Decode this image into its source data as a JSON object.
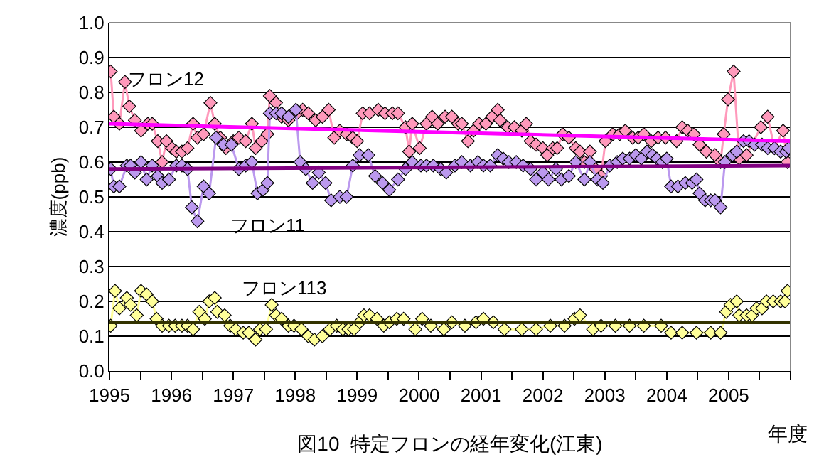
{
  "chart_data": {
    "type": "line",
    "title": "図10  特定フロンの経年変化(江東)",
    "xlabel": "年度",
    "ylabel": "濃度(ppb)",
    "xlim": [
      1995,
      2006
    ],
    "ylim": [
      0,
      1.0
    ],
    "xticks": [
      1995,
      {
        "value": 1995.5,
        "label": null
      },
      1996,
      {
        "value": 1996.5,
        "label": null
      },
      1997,
      {
        "value": 1997.5,
        "label": null
      },
      1998,
      {
        "value": 1998.5,
        "label": null
      },
      1999,
      {
        "value": 1999.5,
        "label": null
      },
      2000,
      {
        "value": 2000.5,
        "label": null
      },
      2001,
      {
        "value": 2001.5,
        "label": null
      },
      2002,
      {
        "value": 2002.5,
        "label": null
      },
      2003,
      {
        "value": 2003.5,
        "label": null
      },
      2004,
      {
        "value": 2004.5,
        "label": null
      },
      2005,
      {
        "value": 2005.5,
        "label": null
      },
      {
        "value": 2006,
        "label": null
      }
    ],
    "yticks": [
      {
        "value": 0,
        "label": "0.0"
      },
      0.1,
      0.2,
      0.3,
      0.4,
      0.5,
      0.6,
      0.7,
      0.8,
      0.9,
      {
        "value": 1.0,
        "label": "1.0"
      }
    ],
    "grid": "y",
    "legend": false,
    "marker": "diamond",
    "line_style": "solid",
    "series": [
      {
        "name": "フロン12",
        "color": "#ff99bb",
        "x": [
          1995.02,
          1995.07,
          1995.16,
          1995.25,
          1995.32,
          1995.41,
          1995.51,
          1995.62,
          1995.69,
          1995.78,
          1995.85,
          1995.92,
          1996.01,
          1996.08,
          1996.17,
          1996.26,
          1996.35,
          1996.42,
          1996.52,
          1996.63,
          1996.7,
          1996.79,
          1996.88,
          1997.0,
          1997.09,
          1997.2,
          1997.3,
          1997.36,
          1997.46,
          1997.55,
          1997.59,
          1997.69,
          1997.78,
          1997.89,
          1998.03,
          1998.12,
          1998.21,
          1998.33,
          1998.44,
          1998.54,
          1998.63,
          1998.72,
          1998.83,
          1998.93,
          1999.0,
          1999.09,
          1999.2,
          1999.34,
          1999.45,
          1999.57,
          1999.66,
          1999.78,
          1999.84,
          1999.89,
          2000.01,
          2000.12,
          2000.21,
          2000.3,
          2000.42,
          2000.53,
          2000.63,
          2000.69,
          2000.79,
          2000.88,
          2000.97,
          2001.08,
          2001.18,
          2001.27,
          2001.31,
          2001.43,
          2001.54,
          2001.66,
          2001.73,
          2001.8,
          2001.89,
          2002.0,
          2002.07,
          2002.16,
          2002.23,
          2002.32,
          2002.42,
          2002.53,
          2002.6,
          2002.67,
          2002.76,
          2002.85,
          2002.94,
          2003.01,
          2003.13,
          2003.24,
          2003.33,
          2003.45,
          2003.54,
          2003.63,
          2003.75,
          2003.86,
          2003.98,
          2004.16,
          2004.25,
          2004.34,
          2004.44,
          2004.53,
          2004.64,
          2004.78,
          2004.87,
          2004.92,
          2004.99,
          2005.08,
          2005.17,
          2005.29,
          2005.52,
          2005.63,
          2005.74,
          2005.88,
          2005.95
        ],
        "values": [
          0.86,
          0.73,
          0.71,
          0.83,
          0.76,
          0.72,
          0.69,
          0.71,
          0.71,
          0.66,
          0.6,
          0.66,
          0.64,
          0.63,
          0.63,
          0.64,
          0.71,
          0.67,
          0.68,
          0.77,
          0.71,
          0.67,
          0.64,
          0.66,
          0.67,
          0.66,
          0.71,
          0.64,
          0.66,
          0.68,
          0.79,
          0.77,
          0.73,
          0.72,
          0.74,
          0.75,
          0.74,
          0.72,
          0.73,
          0.75,
          0.67,
          0.69,
          0.68,
          0.67,
          0.66,
          0.74,
          0.74,
          0.75,
          0.74,
          0.74,
          0.74,
          0.7,
          0.63,
          0.71,
          0.64,
          0.71,
          0.73,
          0.71,
          0.73,
          0.73,
          0.71,
          0.71,
          0.66,
          0.69,
          0.71,
          0.71,
          0.73,
          0.75,
          0.72,
          0.7,
          0.7,
          0.69,
          0.71,
          0.66,
          0.65,
          0.64,
          0.62,
          0.64,
          0.64,
          0.68,
          0.67,
          0.64,
          0.63,
          0.6,
          0.63,
          0.58,
          0.56,
          0.66,
          0.68,
          0.68,
          0.69,
          0.67,
          0.67,
          0.68,
          0.66,
          0.67,
          0.67,
          0.66,
          0.7,
          0.69,
          0.68,
          0.65,
          0.63,
          0.62,
          0.6,
          0.68,
          0.78,
          0.86,
          0.61,
          0.62,
          0.7,
          0.73,
          0.64,
          0.69,
          0.6
        ]
      },
      {
        "name": "フロン11",
        "color": "#bb99ee",
        "x": [
          1995.02,
          1995.07,
          1995.16,
          1995.28,
          1995.34,
          1995.41,
          1995.51,
          1995.6,
          1995.69,
          1995.78,
          1995.85,
          1995.96,
          1996.08,
          1996.17,
          1996.26,
          1996.33,
          1996.42,
          1996.52,
          1996.61,
          1996.72,
          1996.84,
          1996.97,
          1997.09,
          1997.2,
          1997.3,
          1997.39,
          1997.48,
          1997.55,
          1997.59,
          1997.69,
          1997.78,
          1997.89,
          1998.01,
          1998.08,
          1998.17,
          1998.28,
          1998.38,
          1998.49,
          1998.58,
          1998.72,
          1998.83,
          1998.93,
          1999.04,
          1999.18,
          1999.29,
          1999.41,
          1999.52,
          1999.66,
          1999.78,
          1999.89,
          2000.03,
          2000.12,
          2000.23,
          2000.35,
          2000.44,
          2000.58,
          2000.69,
          2000.83,
          2000.95,
          2001.04,
          2001.15,
          2001.27,
          2001.36,
          2001.45,
          2001.57,
          2001.68,
          2001.8,
          2001.89,
          2002.0,
          2002.09,
          2002.21,
          2002.3,
          2002.42,
          2002.53,
          2002.67,
          2002.76,
          2002.88,
          2002.97,
          2003.08,
          2003.2,
          2003.29,
          2003.4,
          2003.5,
          2003.59,
          2003.68,
          2003.77,
          2003.84,
          2003.93,
          2004.0,
          2004.07,
          2004.18,
          2004.3,
          2004.41,
          2004.48,
          2004.53,
          2004.62,
          2004.71,
          2004.78,
          2004.87,
          2004.94,
          2005.06,
          2005.13,
          2005.24,
          2005.33,
          2005.42,
          2005.54,
          2005.63,
          2005.74,
          2005.84,
          2005.93,
          2005.97
        ],
        "values": [
          0.58,
          0.53,
          0.53,
          0.59,
          0.59,
          0.57,
          0.6,
          0.55,
          0.59,
          0.56,
          0.54,
          0.55,
          0.59,
          0.59,
          0.58,
          0.47,
          0.43,
          0.53,
          0.51,
          0.67,
          0.65,
          0.65,
          0.58,
          0.59,
          0.6,
          0.51,
          0.52,
          0.54,
          0.74,
          0.74,
          0.74,
          0.73,
          0.75,
          0.6,
          0.58,
          0.54,
          0.57,
          0.54,
          0.49,
          0.5,
          0.5,
          0.59,
          0.62,
          0.62,
          0.56,
          0.54,
          0.52,
          0.55,
          0.58,
          0.6,
          0.59,
          0.59,
          0.59,
          0.58,
          0.57,
          0.59,
          0.6,
          0.59,
          0.6,
          0.59,
          0.59,
          0.62,
          0.61,
          0.6,
          0.6,
          0.59,
          0.58,
          0.55,
          0.57,
          0.55,
          0.58,
          0.55,
          0.56,
          0.6,
          0.55,
          0.6,
          0.55,
          0.54,
          0.59,
          0.6,
          0.61,
          0.61,
          0.62,
          0.61,
          0.63,
          0.62,
          0.61,
          0.6,
          0.61,
          0.53,
          0.53,
          0.54,
          0.54,
          0.55,
          0.51,
          0.49,
          0.49,
          0.49,
          0.47,
          0.6,
          0.62,
          0.63,
          0.66,
          0.66,
          0.65,
          0.65,
          0.64,
          0.64,
          0.63,
          0.63,
          0.64
        ]
      },
      {
        "name": "フロン113",
        "color": "#ffff99",
        "x": [
          1995.02,
          1995.09,
          1995.16,
          1995.28,
          1995.34,
          1995.44,
          1995.51,
          1995.6,
          1995.69,
          1995.76,
          1995.85,
          1995.96,
          1996.06,
          1996.17,
          1996.26,
          1996.35,
          1996.45,
          1996.54,
          1996.61,
          1996.7,
          1996.74,
          1996.86,
          1996.95,
          1997.04,
          1997.16,
          1997.25,
          1997.36,
          1997.43,
          1997.53,
          1997.62,
          1997.69,
          1997.78,
          1997.89,
          1997.98,
          1998.1,
          1998.21,
          1998.31,
          1998.44,
          1998.56,
          1998.67,
          1998.77,
          1998.86,
          1998.95,
          1999.04,
          1999.11,
          1999.2,
          1999.32,
          1999.43,
          1999.52,
          1999.64,
          1999.75,
          1999.94,
          2000.05,
          2000.19,
          2000.4,
          2000.53,
          2000.74,
          2000.92,
          2001.04,
          2001.2,
          2001.38,
          2001.66,
          2001.89,
          2002.12,
          2002.35,
          2002.51,
          2002.6,
          2002.81,
          2002.94,
          2003.17,
          2003.4,
          2003.63,
          2003.91,
          2004.07,
          2004.25,
          2004.48,
          2004.71,
          2004.87,
          2004.96,
          2005.03,
          2005.13,
          2005.17,
          2005.29,
          2005.38,
          2005.45,
          2005.54,
          2005.61,
          2005.72,
          2005.84,
          2005.91,
          2005.95
        ],
        "values": [
          0.13,
          0.23,
          0.18,
          0.21,
          0.19,
          0.16,
          0.23,
          0.22,
          0.2,
          0.15,
          0.13,
          0.13,
          0.13,
          0.13,
          0.13,
          0.12,
          0.17,
          0.15,
          0.2,
          0.21,
          0.17,
          0.16,
          0.13,
          0.12,
          0.11,
          0.11,
          0.09,
          0.12,
          0.12,
          0.19,
          0.16,
          0.15,
          0.13,
          0.13,
          0.12,
          0.1,
          0.09,
          0.1,
          0.12,
          0.13,
          0.12,
          0.12,
          0.12,
          0.14,
          0.16,
          0.16,
          0.15,
          0.13,
          0.14,
          0.15,
          0.15,
          0.12,
          0.15,
          0.13,
          0.12,
          0.14,
          0.13,
          0.14,
          0.15,
          0.14,
          0.12,
          0.12,
          0.12,
          0.13,
          0.13,
          0.15,
          0.16,
          0.12,
          0.13,
          0.13,
          0.13,
          0.13,
          0.13,
          0.11,
          0.11,
          0.11,
          0.11,
          0.11,
          0.17,
          0.19,
          0.2,
          0.16,
          0.16,
          0.16,
          0.18,
          0.18,
          0.2,
          0.2,
          0.2,
          0.2,
          0.23
        ]
      },
      {
        "marker": "none",
        "color": "#ff00ff",
        "x": [
          1995,
          2006
        ],
        "values": [
          0.71,
          0.66
        ]
      },
      {
        "marker": "none",
        "color": "#800080",
        "x": [
          1995,
          2006
        ],
        "values": [
          0.58,
          0.59
        ]
      },
      {
        "marker": "none",
        "color": "#333300",
        "x": [
          1995,
          2006
        ],
        "values": [
          0.14,
          0.14
        ]
      }
    ]
  }
}
